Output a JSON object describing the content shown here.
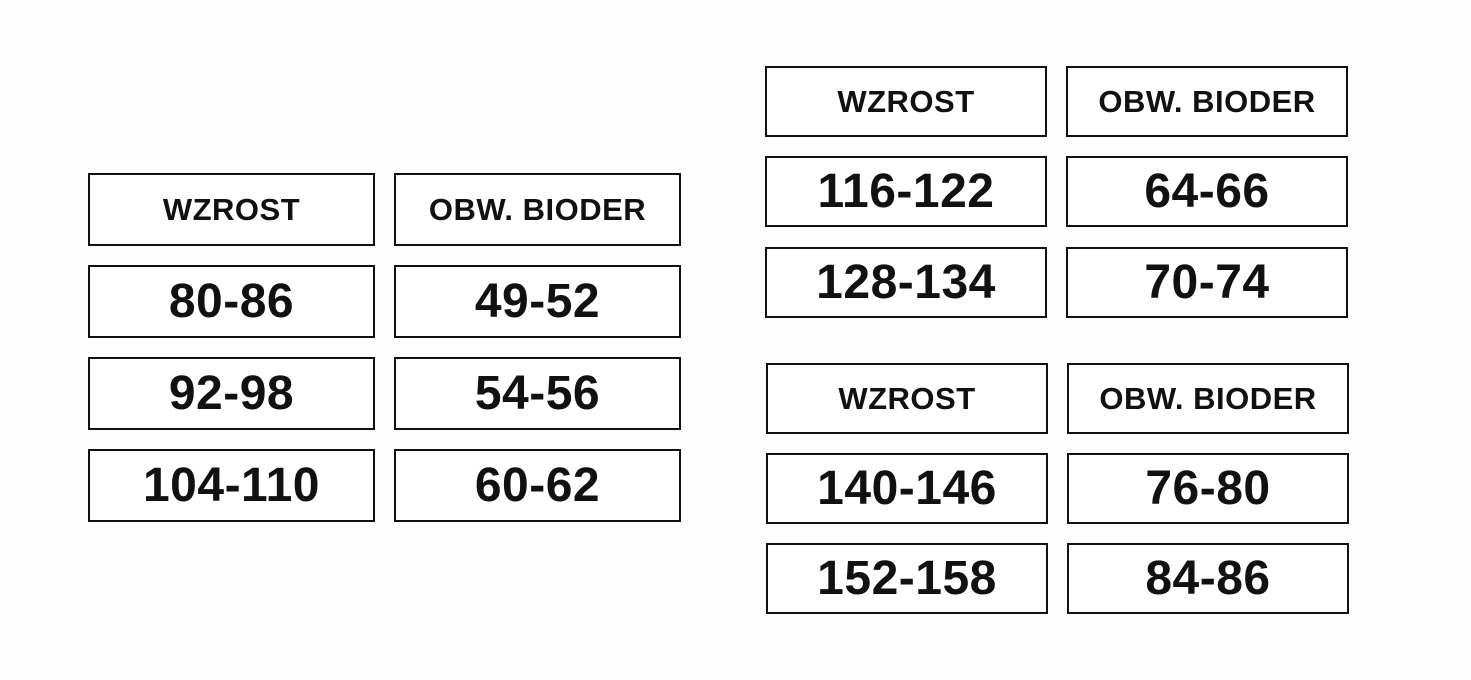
{
  "tables": [
    {
      "headers": [
        "WZROST",
        "OBW. BIODER"
      ],
      "rows": [
        [
          "80-86",
          "49-52"
        ],
        [
          "92-98",
          "54-56"
        ],
        [
          "104-110",
          "60-62"
        ]
      ]
    },
    {
      "headers": [
        "WZROST",
        "OBW. BIODER"
      ],
      "rows": [
        [
          "116-122",
          "64-66"
        ],
        [
          "128-134",
          "70-74"
        ]
      ]
    },
    {
      "headers": [
        "WZROST",
        "OBW. BIODER"
      ],
      "rows": [
        [
          "140-146",
          "76-80"
        ],
        [
          "152-158",
          "84-86"
        ]
      ]
    }
  ]
}
